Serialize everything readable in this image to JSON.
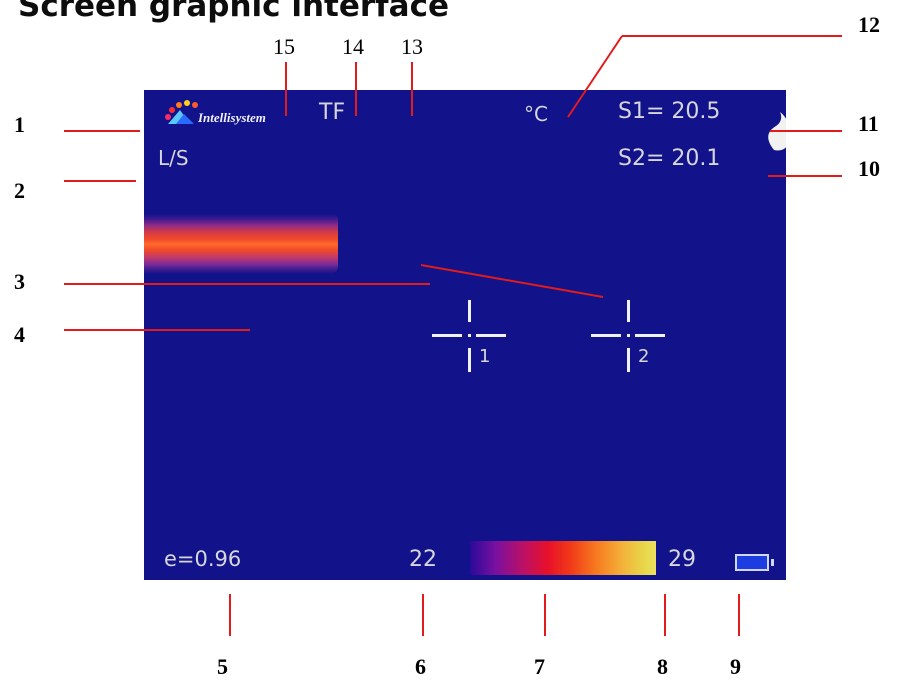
{
  "heading": "Screen graphic interface",
  "callouts": {
    "left": [
      "1",
      "2",
      "3",
      "4"
    ],
    "right": [
      "12",
      "11",
      "10"
    ],
    "top": [
      "15",
      "14",
      "13"
    ],
    "bottom": [
      "5",
      "6",
      "7",
      "8",
      "9"
    ]
  },
  "screen": {
    "brand": "Intellisystem",
    "mode": "TF",
    "unit": "°C",
    "s1": "S1= 20.5",
    "s2": "S2= 20.1",
    "ls": "L/S",
    "emissivity": "e=0.96",
    "range_min": "22",
    "range_max": "29",
    "cursor1": "1",
    "cursor2": "2"
  },
  "colors": {
    "screen_bg": "#12128a",
    "leader": "#e21b1b",
    "screen_text": "#d6d6dc",
    "battery_fill": "#1d3de0"
  },
  "icons": {
    "logo": "intellisystem-logo",
    "battery": "battery-icon",
    "signal": "signal-wave-icon",
    "crosshair": "crosshair-icon"
  }
}
